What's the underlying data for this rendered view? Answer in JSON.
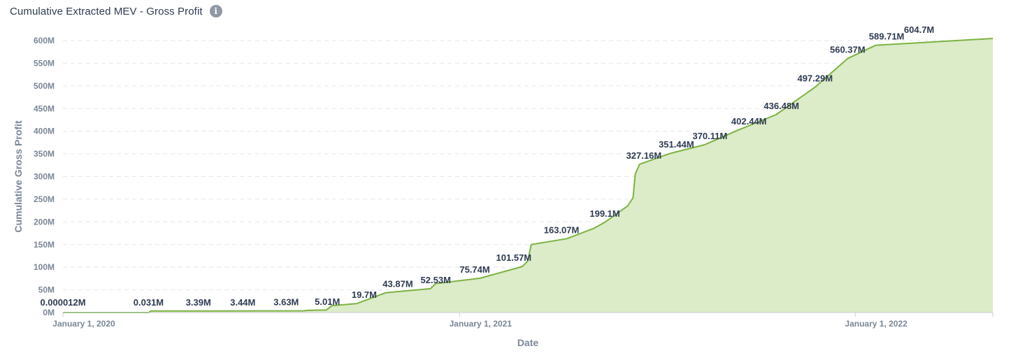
{
  "header": {
    "title": "Cumulative Extracted MEV - Gross Profit",
    "info_icon": "info-icon"
  },
  "colors": {
    "line": "#7cb342",
    "area": "#dcebc8",
    "grid": "#e4e6ea",
    "title": "#2e3b52",
    "tick": "#7a8796"
  },
  "chart_data": {
    "type": "area",
    "xlabel": "Date",
    "ylabel": "Cumulative Gross Profit",
    "xlim": [
      "2020-01-01",
      "2022-05-08"
    ],
    "ylim": [
      0,
      600
    ],
    "y_unit": "M",
    "y_ticks": [
      "0M",
      "50M",
      "100M",
      "150M",
      "200M",
      "250M",
      "300M",
      "350M",
      "400M",
      "450M",
      "500M",
      "550M",
      "600M"
    ],
    "x_ticks": [
      {
        "date": "2020-01-01",
        "label": "January 1, 2020"
      },
      {
        "date": "2021-01-01",
        "label": "January 1, 2021"
      },
      {
        "date": "2022-01-01",
        "label": "January 1, 2022"
      }
    ],
    "grid": "horizontal",
    "series": [
      {
        "values": [
          {
            "date": "2020-01-01",
            "y": 1.2e-05
          },
          {
            "date": "2020-03-20",
            "y": 0.031
          },
          {
            "date": "2020-03-22",
            "y": 3.39
          },
          {
            "date": "2020-05-15",
            "y": 3.44
          },
          {
            "date": "2020-07-01",
            "y": 3.63
          },
          {
            "date": "2020-08-10",
            "y": 3.8
          },
          {
            "date": "2020-08-15",
            "y": 5.01
          },
          {
            "date": "2020-08-31",
            "y": 5.5
          },
          {
            "date": "2020-09-05",
            "y": 15.0
          },
          {
            "date": "2020-09-28",
            "y": 19.7
          },
          {
            "date": "2020-10-25",
            "y": 43.87
          },
          {
            "date": "2020-12-05",
            "y": 52.53
          },
          {
            "date": "2020-12-10",
            "y": 64.0
          },
          {
            "date": "2021-01-20",
            "y": 75.74
          },
          {
            "date": "2021-02-28",
            "y": 101.57
          },
          {
            "date": "2021-03-05",
            "y": 114.0
          },
          {
            "date": "2021-03-08",
            "y": 150.0
          },
          {
            "date": "2021-04-10",
            "y": 163.07
          },
          {
            "date": "2021-05-05",
            "y": 186.0
          },
          {
            "date": "2021-05-15",
            "y": 199.1
          },
          {
            "date": "2021-06-05",
            "y": 235.0
          },
          {
            "date": "2021-06-10",
            "y": 253.0
          },
          {
            "date": "2021-06-12",
            "y": 305.0
          },
          {
            "date": "2021-06-16",
            "y": 327.16
          },
          {
            "date": "2021-07-15",
            "y": 351.44
          },
          {
            "date": "2021-08-15",
            "y": 370.11
          },
          {
            "date": "2021-09-15",
            "y": 402.44
          },
          {
            "date": "2021-10-20",
            "y": 436.48
          },
          {
            "date": "2021-11-25",
            "y": 497.29
          },
          {
            "date": "2021-12-25",
            "y": 560.37
          },
          {
            "date": "2022-01-20",
            "y": 589.71
          },
          {
            "date": "2022-05-08",
            "y": 604.7
          }
        ]
      }
    ],
    "data_labels": [
      {
        "date": "2020-01-01",
        "y": 1.2e-05,
        "text": "0.000012M"
      },
      {
        "date": "2020-03-20",
        "y": 0.031,
        "text": "0.031M"
      },
      {
        "date": "2020-05-05",
        "y": 3.39,
        "text": "3.39M"
      },
      {
        "date": "2020-06-15",
        "y": 3.44,
        "text": "3.44M"
      },
      {
        "date": "2020-07-25",
        "y": 3.63,
        "text": "3.63M"
      },
      {
        "date": "2020-09-01",
        "y": 5.01,
        "text": "5.01M"
      },
      {
        "date": "2020-10-05",
        "y": 19.7,
        "text": "19.7M"
      },
      {
        "date": "2020-11-05",
        "y": 43.87,
        "text": "43.87M"
      },
      {
        "date": "2020-12-10",
        "y": 52.53,
        "text": "52.53M"
      },
      {
        "date": "2021-01-15",
        "y": 75.74,
        "text": "75.74M"
      },
      {
        "date": "2021-02-20",
        "y": 101.57,
        "text": "101.57M"
      },
      {
        "date": "2021-04-05",
        "y": 163.07,
        "text": "163.07M"
      },
      {
        "date": "2021-05-15",
        "y": 199.1,
        "text": "199.1M"
      },
      {
        "date": "2021-06-20",
        "y": 327.16,
        "text": "327.16M"
      },
      {
        "date": "2021-07-20",
        "y": 351.44,
        "text": "351.44M"
      },
      {
        "date": "2021-08-20",
        "y": 370.11,
        "text": "370.11M"
      },
      {
        "date": "2021-09-25",
        "y": 402.44,
        "text": "402.44M"
      },
      {
        "date": "2021-10-25",
        "y": 436.48,
        "text": "436.48M"
      },
      {
        "date": "2021-11-25",
        "y": 497.29,
        "text": "497.29M"
      },
      {
        "date": "2021-12-25",
        "y": 560.37,
        "text": "560.37M"
      },
      {
        "date": "2022-01-30",
        "y": 589.71,
        "text": "589.71M"
      },
      {
        "date": "2022-03-01",
        "y": 604.7,
        "text": "604.7M"
      }
    ]
  }
}
